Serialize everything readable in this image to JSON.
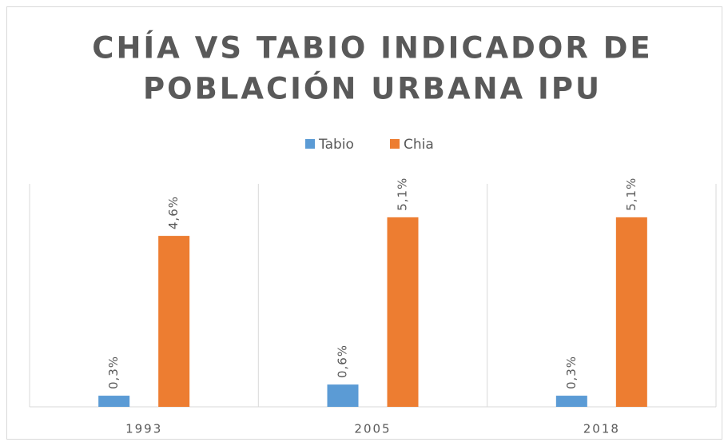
{
  "chart_data": {
    "type": "bar",
    "title": [
      "CHÍA VS TABIO INDICADOR DE",
      "POBLACIÓN URBANA IPU"
    ],
    "categories": [
      "1993",
      "2005",
      "2018"
    ],
    "series": [
      {
        "name": "Tabio",
        "color": "#5b9bd5",
        "values": [
          0.3,
          0.6,
          0.3
        ],
        "value_labels": [
          "0,3%",
          "0,6%",
          "0,3%"
        ]
      },
      {
        "name": "Chia",
        "color": "#ed7d31",
        "values": [
          4.6,
          5.1,
          5.1
        ],
        "value_labels": [
          "4,6%",
          "5,1%",
          "5,1%"
        ]
      }
    ],
    "ylim": [
      0,
      6
    ],
    "legend": "top"
  }
}
